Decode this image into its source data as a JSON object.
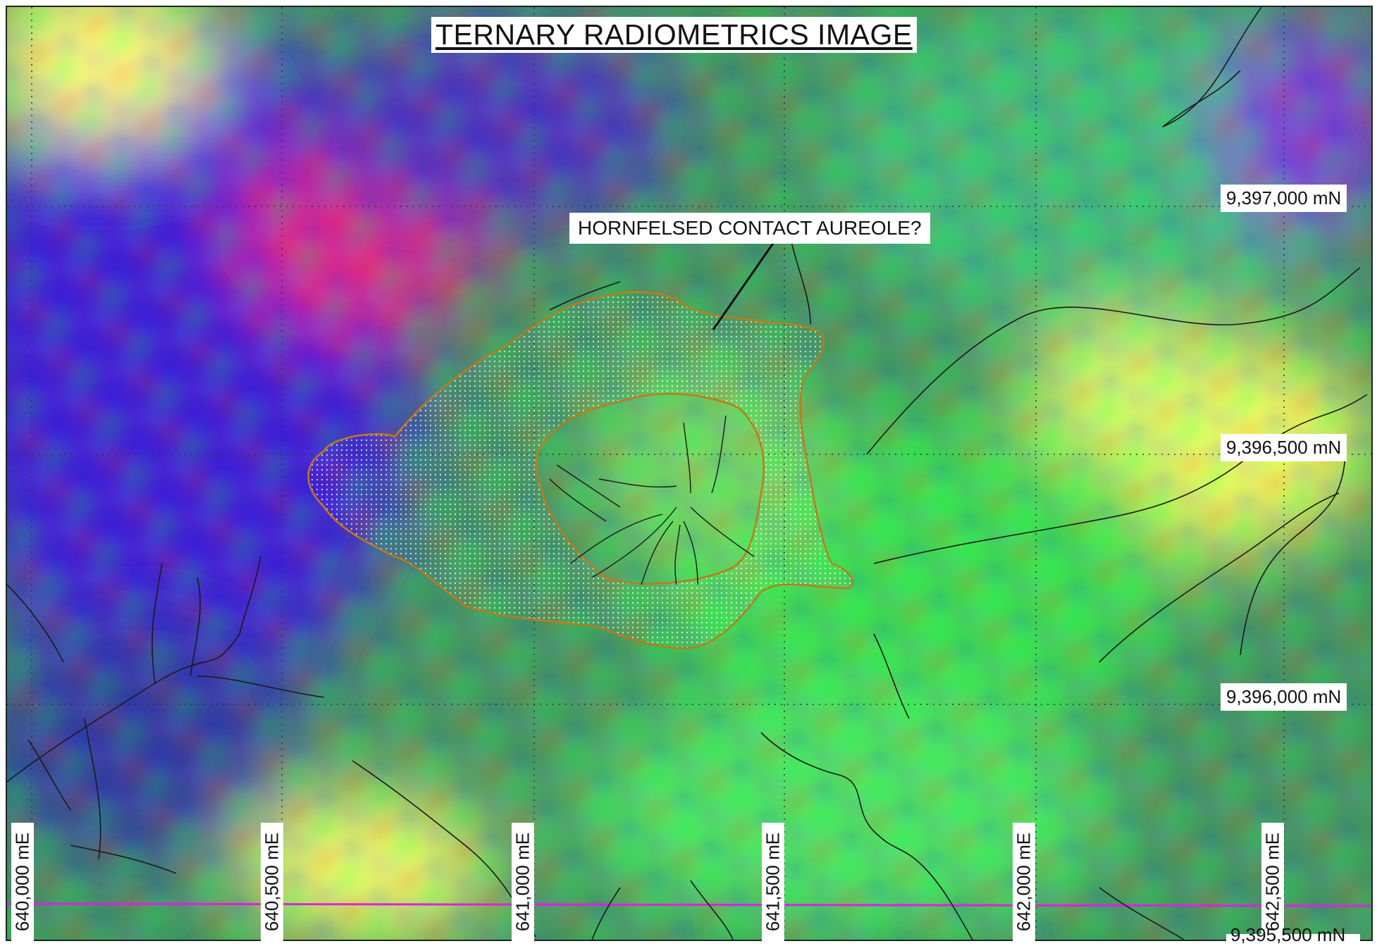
{
  "map": {
    "title": "TERNARY RADIOMETRICS IMAGE",
    "annotation": "HORNFELSED CONTACT AUREOLE?",
    "northings": [
      "9,397,000 mN",
      "9,396,500 mN",
      "9,396,000 mN"
    ],
    "northing_cut": "9,395,500 mN",
    "eastings": [
      "640,000 mE",
      "640,500 mE",
      "641,000 mE",
      "641,500 mE",
      "642,000 mE",
      "642,500 mE"
    ],
    "colors": {
      "aureole_outline": "#c07a1a",
      "drainage": "#1a1a1a",
      "boundary_line": "#e020e0",
      "grid": "#333333"
    }
  }
}
